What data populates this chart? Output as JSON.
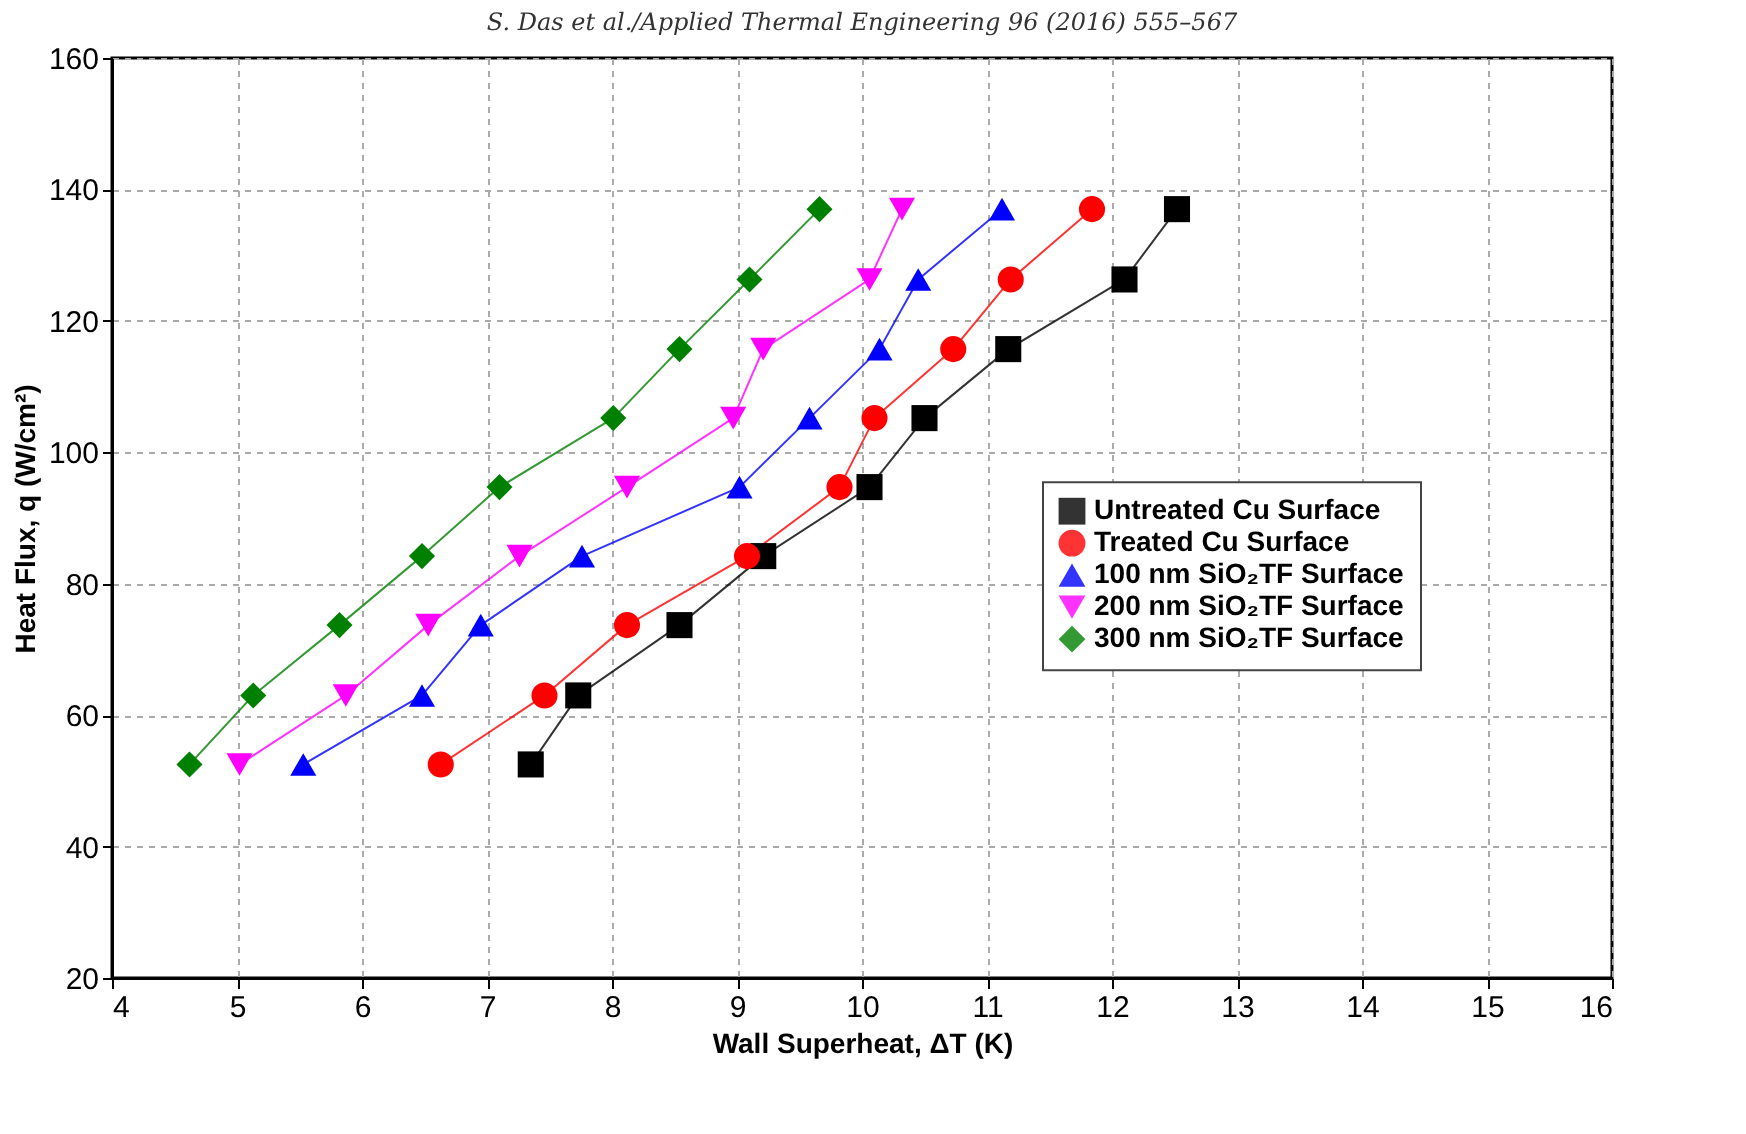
{
  "chart_data": {
    "type": "line",
    "annotations": [
      "S. Das et al./Applied Thermal Engineering 96 (2016) 555–567"
    ],
    "xlabel": "Wall Superheat, ΔT (K)",
    "ylabel": "Heat Flux, q (W/cm²)",
    "xlim": [
      4,
      16
    ],
    "xticks": [
      4,
      5,
      6,
      7,
      8,
      9,
      10,
      11,
      12,
      13,
      14,
      15,
      16
    ],
    "ylim": [
      20,
      160
    ],
    "yticks": [
      20,
      40,
      60,
      80,
      100,
      120,
      140,
      160
    ],
    "grid": true,
    "legend": "right",
    "line_style": "solid",
    "series": [
      {
        "name": "Untreated Cu Surface",
        "color": "#000000",
        "marker": "square",
        "x": [
          7.35,
          7.73,
          8.54,
          9.21,
          10.06,
          10.5,
          11.17,
          12.1,
          12.52
        ],
        "values": [
          52.5,
          63,
          73.7,
          84.2,
          94.7,
          105.2,
          115.7,
          126.3,
          137
        ]
      },
      {
        "name": "Treated Cu Surface",
        "color": "#ff0000",
        "marker": "circle",
        "x": [
          6.63,
          7.46,
          8.12,
          9.08,
          9.82,
          10.1,
          10.73,
          11.19,
          11.84
        ],
        "values": [
          52.5,
          63,
          73.7,
          84.2,
          94.7,
          105.2,
          115.7,
          126.3,
          137
        ]
      },
      {
        "name": "100 nm SiO₂TF Surface",
        "color": "#0000ff",
        "marker": "triangle-up",
        "x": [
          5.53,
          6.48,
          6.95,
          7.76,
          9.02,
          9.58,
          10.14,
          10.45,
          11.12
        ],
        "values": [
          52.5,
          63,
          73.7,
          84.2,
          94.7,
          105.2,
          115.7,
          126.3,
          137
        ]
      },
      {
        "name": "200 nm SiO₂TF Surface",
        "color": "#ff00ff",
        "marker": "triangle-down",
        "x": [
          5.02,
          5.87,
          6.53,
          7.26,
          8.12,
          8.97,
          9.21,
          10.06,
          10.32
        ],
        "values": [
          52.5,
          63,
          73.7,
          84.2,
          94.7,
          105.2,
          115.7,
          126.3,
          137
        ]
      },
      {
        "name": "300 nm SiO₂TF Surface",
        "color": "#008000",
        "marker": "diamond",
        "x": [
          4.62,
          5.13,
          5.82,
          6.48,
          7.1,
          8.01,
          8.54,
          9.1,
          9.66
        ],
        "values": [
          52.5,
          63,
          73.7,
          84.2,
          94.7,
          105.2,
          115.7,
          126.3,
          137
        ]
      }
    ]
  }
}
